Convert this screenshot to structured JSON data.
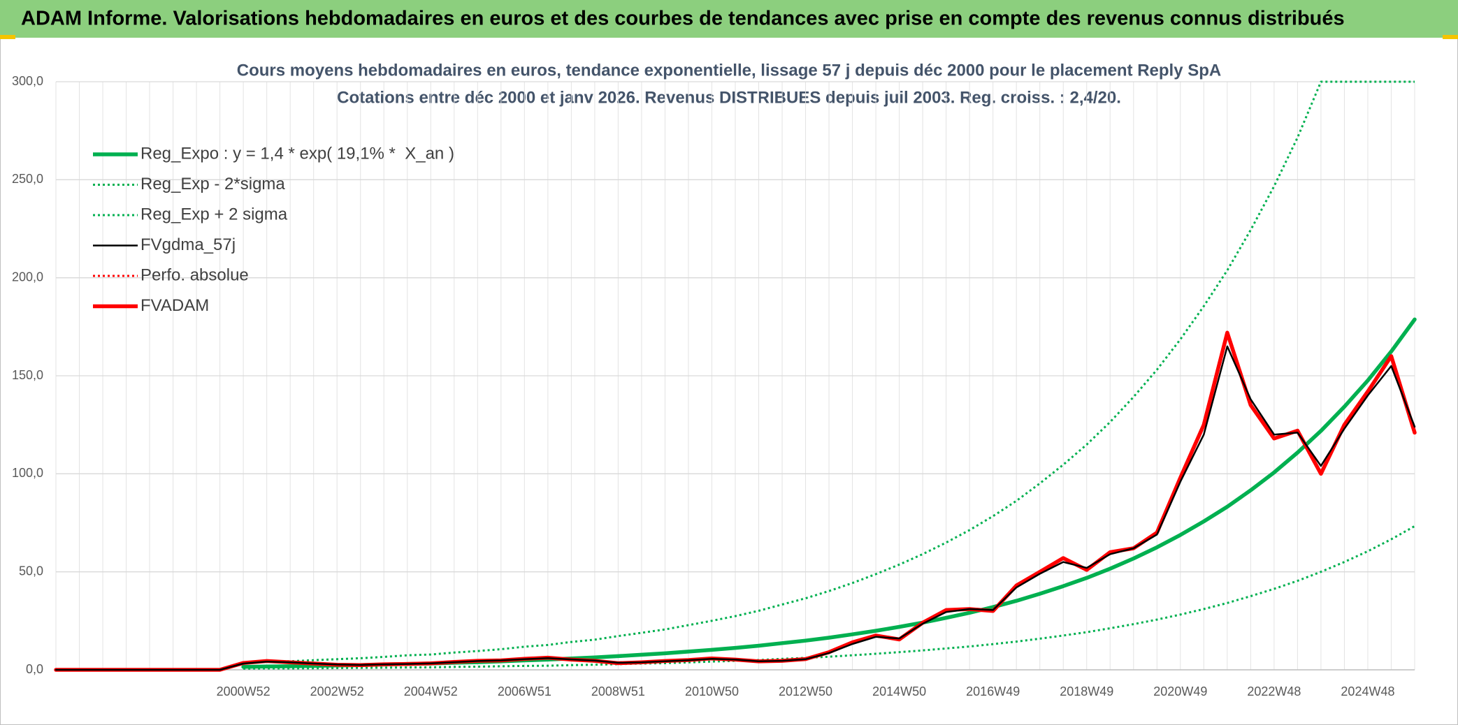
{
  "header": {
    "title": "ADAM Informe. Valorisations hebdomadaires en euros et des courbes de tendances avec prise en compte des revenus connus distribués"
  },
  "chart_data": {
    "type": "line",
    "title": "Cours moyens hebdomadaires en euros, tendance exponentielle, lissage 57 j depuis déc 2000 pour le placement Reply SpA",
    "subtitle": "Cotations entre déc 2000 et janv 2026. Revenus DISTRIBUES depuis juil 2003. Reg. croiss. : 2,4/20.",
    "categories": [
      null,
      null,
      null,
      null,
      null,
      null,
      null,
      null,
      "2000W52",
      null,
      null,
      null,
      "2002W52",
      null,
      null,
      null,
      "2004W52",
      null,
      null,
      null,
      "2006W51",
      null,
      null,
      null,
      "2008W51",
      null,
      null,
      null,
      "2010W50",
      null,
      null,
      null,
      "2012W50",
      null,
      null,
      null,
      "2014W50",
      null,
      null,
      null,
      "2016W49",
      null,
      null,
      null,
      "2018W49",
      null,
      null,
      null,
      "2020W49",
      null,
      null,
      null,
      "2022W48",
      null,
      null,
      null,
      "2024W48",
      null,
      null
    ],
    "ylim": [
      0,
      300
    ],
    "yticks": [
      {
        "value": 0,
        "label": "0,0"
      },
      {
        "value": 50,
        "label": "50,0"
      },
      {
        "value": 100,
        "label": "100,0"
      },
      {
        "value": 150,
        "label": "150,0"
      },
      {
        "value": 200,
        "label": "200,0"
      },
      {
        "value": 250,
        "label": "250,0"
      },
      {
        "value": 300,
        "label": "300,0"
      }
    ],
    "grid": true,
    "legend": "top-left",
    "series": [
      {
        "name": "Reg_Expo : y = 1,4 * exp( 19,1% *  X_an )",
        "color": "#00b050",
        "line_style": "thick",
        "values": [
          null,
          null,
          null,
          null,
          null,
          null,
          null,
          null,
          1.5,
          1.7,
          1.8,
          2.0,
          2.2,
          2.4,
          2.7,
          3.0,
          3.2,
          3.6,
          3.9,
          4.3,
          4.8,
          5.2,
          5.8,
          6.3,
          7.0,
          7.7,
          8.4,
          9.3,
          10.2,
          11.2,
          12.3,
          13.6,
          14.9,
          16.4,
          18.1,
          19.9,
          21.9,
          24.1,
          26.5,
          29.1,
          32.0,
          35.2,
          38.8,
          42.7,
          46.9,
          51.6,
          56.8,
          62.5,
          68.8,
          75.7,
          83.2,
          91.6,
          100.7,
          110.8,
          121.9,
          134.2,
          147.6,
          162.4,
          178.7
        ]
      },
      {
        "name": "Reg_Exp - 2*sigma",
        "color": "#00b050",
        "line_style": "dotted",
        "values": [
          null,
          null,
          null,
          null,
          null,
          null,
          null,
          null,
          0.6,
          0.7,
          0.7,
          0.8,
          0.9,
          1.0,
          1.1,
          1.2,
          1.3,
          1.5,
          1.6,
          1.8,
          2.0,
          2.1,
          2.4,
          2.6,
          2.9,
          3.2,
          3.4,
          3.8,
          4.2,
          4.6,
          5.0,
          5.6,
          6.1,
          6.7,
          7.4,
          8.2,
          9.0,
          9.9,
          10.9,
          11.9,
          13.1,
          14.4,
          15.9,
          17.5,
          19.2,
          21.2,
          23.3,
          25.6,
          28.2,
          31.0,
          34.1,
          37.6,
          41.3,
          45.4,
          50.0,
          55.0,
          60.5,
          66.6,
          73.3
        ]
      },
      {
        "name": "Reg_Exp + 2 sigma",
        "color": "#00b050",
        "line_style": "dotted",
        "values": [
          null,
          null,
          null,
          null,
          null,
          null,
          null,
          null,
          3.7,
          4.2,
          4.4,
          4.9,
          5.4,
          5.9,
          6.6,
          7.4,
          7.8,
          8.8,
          9.6,
          10.5,
          11.8,
          12.7,
          14.2,
          15.4,
          17.2,
          18.9,
          20.6,
          22.8,
          25.0,
          27.4,
          30.1,
          33.3,
          36.5,
          40.2,
          44.3,
          48.8,
          53.7,
          59.0,
          64.9,
          71.3,
          78.4,
          86.2,
          95.1,
          104.6,
          114.9,
          126.4,
          139.2,
          153.1,
          168.6,
          185.5,
          203.8,
          224.4,
          246.7,
          271.5,
          300,
          300,
          300,
          300,
          300
        ]
      },
      {
        "name": "FVgdma_57j",
        "color": "#000000",
        "line_style": "thin",
        "values": [
          0,
          0,
          0,
          0,
          0,
          0,
          0,
          0,
          3.2,
          4.2,
          3.8,
          3.2,
          2.7,
          2.5,
          2.8,
          3.0,
          3.3,
          3.9,
          4.5,
          4.8,
          5.4,
          6.0,
          5.3,
          4.7,
          3.6,
          3.8,
          4.4,
          4.9,
          5.6,
          5.2,
          4.4,
          4.6,
          5.4,
          8.6,
          13.2,
          16.8,
          16.0,
          23.5,
          29.5,
          31.0,
          30.5,
          42.0,
          49.0,
          55.0,
          52.0,
          59.0,
          62.0,
          69.0,
          96.0,
          120.0,
          165.0,
          138.0,
          120.0,
          121.0,
          104.0,
          123.0,
          140.0,
          155.0,
          124.0
        ]
      },
      {
        "name": "Perfo. absolue",
        "color": "#ff0000",
        "line_style": "dotted",
        "values": [
          0,
          0,
          0,
          0,
          0,
          0,
          0,
          0,
          3.5,
          4.5,
          3.8,
          3.2,
          2.6,
          2.4,
          2.8,
          3.0,
          3.3,
          4.0,
          4.6,
          4.8,
          5.6,
          6.2,
          5.2,
          4.6,
          3.4,
          3.8,
          4.5,
          5.0,
          5.8,
          5.2,
          4.3,
          4.6,
          5.5,
          9.0,
          14.0,
          17.5,
          15.5,
          24.0,
          30.5,
          31.0,
          30.0,
          43.0,
          50.0,
          57.0,
          51.0,
          60.0,
          62.0,
          70.0,
          98.0,
          125.0,
          172.0,
          135.0,
          118.0,
          122.0,
          100.0,
          125.0,
          142.0,
          160.0,
          121.0
        ]
      },
      {
        "name": "FVADAM",
        "color": "#ff0000",
        "line_style": "thick",
        "values": [
          0,
          0,
          0,
          0,
          0,
          0,
          0,
          0,
          3.5,
          4.5,
          3.8,
          3.2,
          2.6,
          2.4,
          2.8,
          3.0,
          3.3,
          4.0,
          4.6,
          4.8,
          5.6,
          6.2,
          5.2,
          4.6,
          3.4,
          3.8,
          4.5,
          5.0,
          5.8,
          5.2,
          4.3,
          4.6,
          5.5,
          9.0,
          14.0,
          17.5,
          15.5,
          24.0,
          30.5,
          31.0,
          30.0,
          43.0,
          50.0,
          57.0,
          51.0,
          60.0,
          62.0,
          70.0,
          98.0,
          125.0,
          172.0,
          135.0,
          118.0,
          122.0,
          100.0,
          125.0,
          142.0,
          160.0,
          121.0
        ]
      }
    ]
  }
}
